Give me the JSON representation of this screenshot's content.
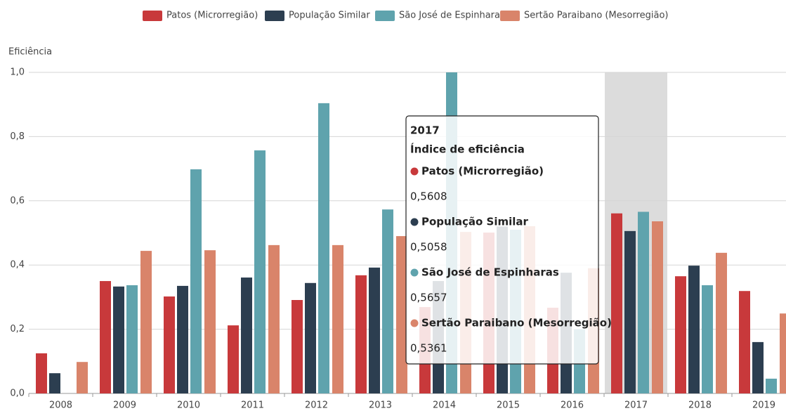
{
  "chart_data": {
    "type": "bar",
    "y_label": "Eficiência",
    "categories": [
      "2008",
      "2009",
      "2010",
      "2011",
      "2012",
      "2013",
      "2014",
      "2015",
      "2016",
      "2017",
      "2018",
      "2019"
    ],
    "series": [
      {
        "name": "Patos (Microrregião)",
        "color": "#c8393b",
        "values": [
          0.125,
          0.35,
          0.302,
          0.212,
          0.291,
          0.368,
          0.269,
          0.501,
          0.267,
          0.5608,
          0.365,
          0.319
        ]
      },
      {
        "name": "População Similar",
        "color": "#2c3e50",
        "values": [
          0.063,
          0.333,
          0.335,
          0.361,
          0.344,
          0.392,
          0.35,
          0.52,
          0.376,
          0.5058,
          0.398,
          0.16
        ]
      },
      {
        "name": "São José de Espinharas",
        "color": "#5fa3ad",
        "values": [
          0,
          0.337,
          0.698,
          0.757,
          0.904,
          0.573,
          1.0,
          0.51,
          0.2,
          0.5657,
          0.337,
          0.046
        ]
      },
      {
        "name": "Sertão Paraibano (Mesorregião)",
        "color": "#d9846a",
        "values": [
          0.098,
          0.444,
          0.446,
          0.462,
          0.462,
          0.49,
          0.503,
          0.521,
          0.39,
          0.5361,
          0.438,
          0.249
        ]
      }
    ],
    "ylim": [
      0,
      1
    ],
    "yticks": [
      {
        "value": 0,
        "label": "0,0"
      },
      {
        "value": 0.2,
        "label": "0,2"
      },
      {
        "value": 0.4,
        "label": "0,4"
      },
      {
        "value": 0.6,
        "label": "0,6"
      },
      {
        "value": 0.8,
        "label": "0,8"
      },
      {
        "value": 1,
        "label": "1,0"
      }
    ],
    "grid": true,
    "legend": "top",
    "tooltip": {
      "heading": "Índice de eficiência",
      "value_labels": [
        "0,5608",
        "0,5058",
        "0,5657",
        "0,5361"
      ]
    }
  }
}
